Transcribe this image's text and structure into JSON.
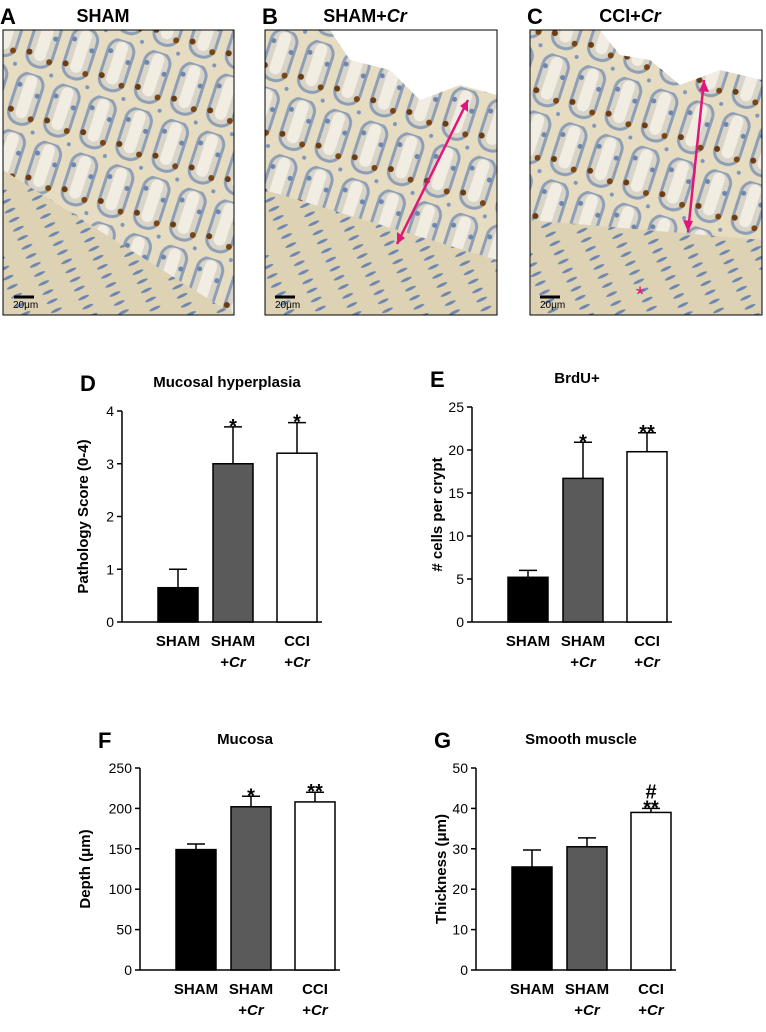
{
  "panels": [
    {
      "letter": "A",
      "title": "SHAM",
      "scale_label": "20μm"
    },
    {
      "letter": "B",
      "title": "SHAM+Cr",
      "scale_label": "20μm"
    },
    {
      "letter": "C",
      "title": "CCI+Cr",
      "scale_label": "20μm",
      "annotation": "*"
    }
  ],
  "chart_data": [
    {
      "type": "bar",
      "letter": "D",
      "title": "Mucosal hyperplasia",
      "y_label": "Pathology Score (0-4)",
      "categories": [
        "SHAM",
        "SHAM +Cr",
        "CCI +Cr"
      ],
      "values": [
        0.65,
        3.0,
        3.2
      ],
      "errors": [
        0.35,
        0.7,
        0.58
      ],
      "colors": [
        "#000000",
        "#5a5a5a",
        "#ffffff"
      ],
      "annotations": [
        null,
        [
          "*"
        ],
        [
          "*"
        ]
      ],
      "ylim": [
        0,
        4
      ],
      "yticks": [
        0,
        1,
        2,
        3,
        4
      ]
    },
    {
      "type": "bar",
      "letter": "E",
      "title": "BrdU+",
      "y_label": "# cells per crypt",
      "categories": [
        "SHAM",
        "SHAM +Cr",
        "CCI +Cr"
      ],
      "values": [
        5.2,
        16.7,
        19.8
      ],
      "errors": [
        0.8,
        4.2,
        2.2
      ],
      "colors": [
        "#000000",
        "#5a5a5a",
        "#ffffff"
      ],
      "annotations": [
        null,
        [
          "*"
        ],
        [
          "**"
        ]
      ],
      "ylim": [
        0,
        25
      ],
      "yticks": [
        0,
        5,
        10,
        15,
        20,
        25
      ]
    },
    {
      "type": "bar",
      "letter": "F",
      "title": "Mucosa",
      "y_label": "Depth (μm)",
      "categories": [
        "SHAM",
        "SHAM +Cr",
        "CCI +Cr"
      ],
      "values": [
        149,
        202,
        208
      ],
      "errors": [
        7,
        13,
        12
      ],
      "colors": [
        "#000000",
        "#5a5a5a",
        "#ffffff"
      ],
      "annotations": [
        null,
        [
          "*"
        ],
        [
          "**"
        ]
      ],
      "ylim": [
        0,
        250
      ],
      "yticks": [
        0,
        50,
        100,
        150,
        200,
        250
      ]
    },
    {
      "type": "bar",
      "letter": "G",
      "title": "Smooth muscle",
      "y_label": "Thickness (μm)",
      "categories": [
        "SHAM",
        "SHAM +Cr",
        "CCI +Cr"
      ],
      "values": [
        25.5,
        30.5,
        39
      ],
      "errors": [
        4.2,
        2.2,
        1
      ],
      "colors": [
        "#000000",
        "#5a5a5a",
        "#ffffff"
      ],
      "annotations": [
        null,
        null,
        [
          "#",
          "**"
        ]
      ],
      "ylim": [
        0,
        50
      ],
      "yticks": [
        0,
        10,
        20,
        30,
        40,
        50
      ]
    }
  ]
}
